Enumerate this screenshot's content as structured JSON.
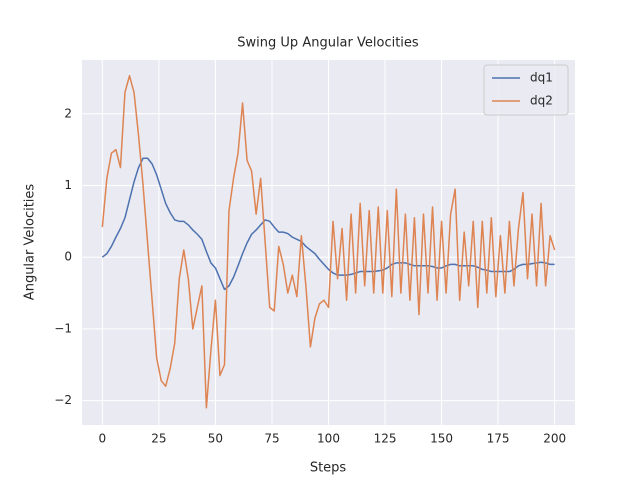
{
  "chart_data": {
    "type": "line",
    "title": "Swing Up Angular Velocities",
    "x_label": "Steps",
    "y_label": "Angular Velocities",
    "x": [
      0,
      2,
      4,
      6,
      8,
      10,
      12,
      14,
      16,
      18,
      20,
      22,
      24,
      26,
      28,
      30,
      32,
      34,
      36,
      38,
      40,
      42,
      44,
      46,
      48,
      50,
      52,
      54,
      56,
      58,
      60,
      62,
      64,
      66,
      68,
      70,
      72,
      74,
      76,
      78,
      80,
      82,
      84,
      86,
      88,
      90,
      92,
      94,
      96,
      98,
      100,
      102,
      104,
      106,
      108,
      110,
      112,
      114,
      116,
      118,
      120,
      122,
      124,
      126,
      128,
      130,
      132,
      134,
      136,
      138,
      140,
      142,
      144,
      146,
      148,
      150,
      152,
      154,
      156,
      158,
      160,
      162,
      164,
      166,
      168,
      170,
      172,
      174,
      176,
      178,
      180,
      182,
      184,
      186,
      188,
      190,
      192,
      194,
      196,
      198,
      200
    ],
    "series": [
      {
        "name": "dq1",
        "color": "#4c72b0",
        "values": [
          0,
          0.05,
          0.15,
          0.28,
          0.4,
          0.55,
          0.8,
          1.05,
          1.25,
          1.38,
          1.38,
          1.3,
          1.15,
          0.95,
          0.75,
          0.62,
          0.52,
          0.5,
          0.5,
          0.45,
          0.38,
          0.32,
          0.25,
          0.08,
          -0.08,
          -0.15,
          -0.3,
          -0.45,
          -0.4,
          -0.28,
          -0.12,
          0.05,
          0.2,
          0.32,
          0.38,
          0.45,
          0.52,
          0.5,
          0.42,
          0.35,
          0.35,
          0.33,
          0.28,
          0.25,
          0.22,
          0.15,
          0.1,
          0.05,
          -0.03,
          -0.1,
          -0.17,
          -0.22,
          -0.25,
          -0.25,
          -0.25,
          -0.24,
          -0.22,
          -0.2,
          -0.2,
          -0.2,
          -0.2,
          -0.19,
          -0.18,
          -0.15,
          -0.1,
          -0.08,
          -0.08,
          -0.08,
          -0.1,
          -0.12,
          -0.12,
          -0.12,
          -0.12,
          -0.13,
          -0.15,
          -0.15,
          -0.12,
          -0.1,
          -0.1,
          -0.12,
          -0.12,
          -0.12,
          -0.12,
          -0.14,
          -0.17,
          -0.18,
          -0.2,
          -0.2,
          -0.2,
          -0.2,
          -0.2,
          -0.17,
          -0.12,
          -0.1,
          -0.1,
          -0.09,
          -0.08,
          -0.07,
          -0.08,
          -0.1,
          -0.1
        ]
      },
      {
        "name": "dq2",
        "color": "#dd8452",
        "values": [
          0.42,
          1.1,
          1.45,
          1.5,
          1.25,
          2.3,
          2.53,
          2.3,
          1.7,
          1.0,
          0.2,
          -0.6,
          -1.4,
          -1.72,
          -1.8,
          -1.55,
          -1.2,
          -0.3,
          0.1,
          -0.3,
          -1.0,
          -0.7,
          -0.4,
          -2.1,
          -1.3,
          -0.6,
          -1.65,
          -1.5,
          0.65,
          1.1,
          1.45,
          2.15,
          1.35,
          1.2,
          0.6,
          1.1,
          0.2,
          -0.7,
          -0.75,
          0.15,
          -0.1,
          -0.5,
          -0.25,
          -0.55,
          0.3,
          -0.4,
          -1.25,
          -0.85,
          -0.65,
          -0.6,
          -0.7,
          0.5,
          -0.3,
          0.4,
          -0.6,
          0.6,
          -0.5,
          0.75,
          -0.4,
          0.65,
          -0.5,
          0.7,
          -0.5,
          0.65,
          -0.55,
          0.95,
          -0.5,
          0.6,
          -0.6,
          0.55,
          -0.8,
          0.6,
          -0.5,
          0.7,
          -0.6,
          0.5,
          -0.5,
          0.6,
          0.95,
          -0.6,
          0.35,
          -0.4,
          0.5,
          -0.7,
          0.5,
          -0.5,
          0.55,
          -0.55,
          0.3,
          -0.5,
          0.5,
          -0.4,
          0.4,
          0.9,
          -0.3,
          0.6,
          -0.4,
          0.75,
          -0.4,
          0.3,
          0.1
        ]
      }
    ],
    "xlim": [
      -9,
      209
    ],
    "ylim": [
      -2.34,
      2.75
    ],
    "xticks": [
      0,
      25,
      50,
      75,
      100,
      125,
      150,
      175,
      200
    ],
    "yticks": [
      {
        "value": -2,
        "label": "−2"
      },
      {
        "value": -1,
        "label": "−1"
      },
      0,
      1,
      2
    ],
    "grid": true,
    "legend": "upper right"
  }
}
